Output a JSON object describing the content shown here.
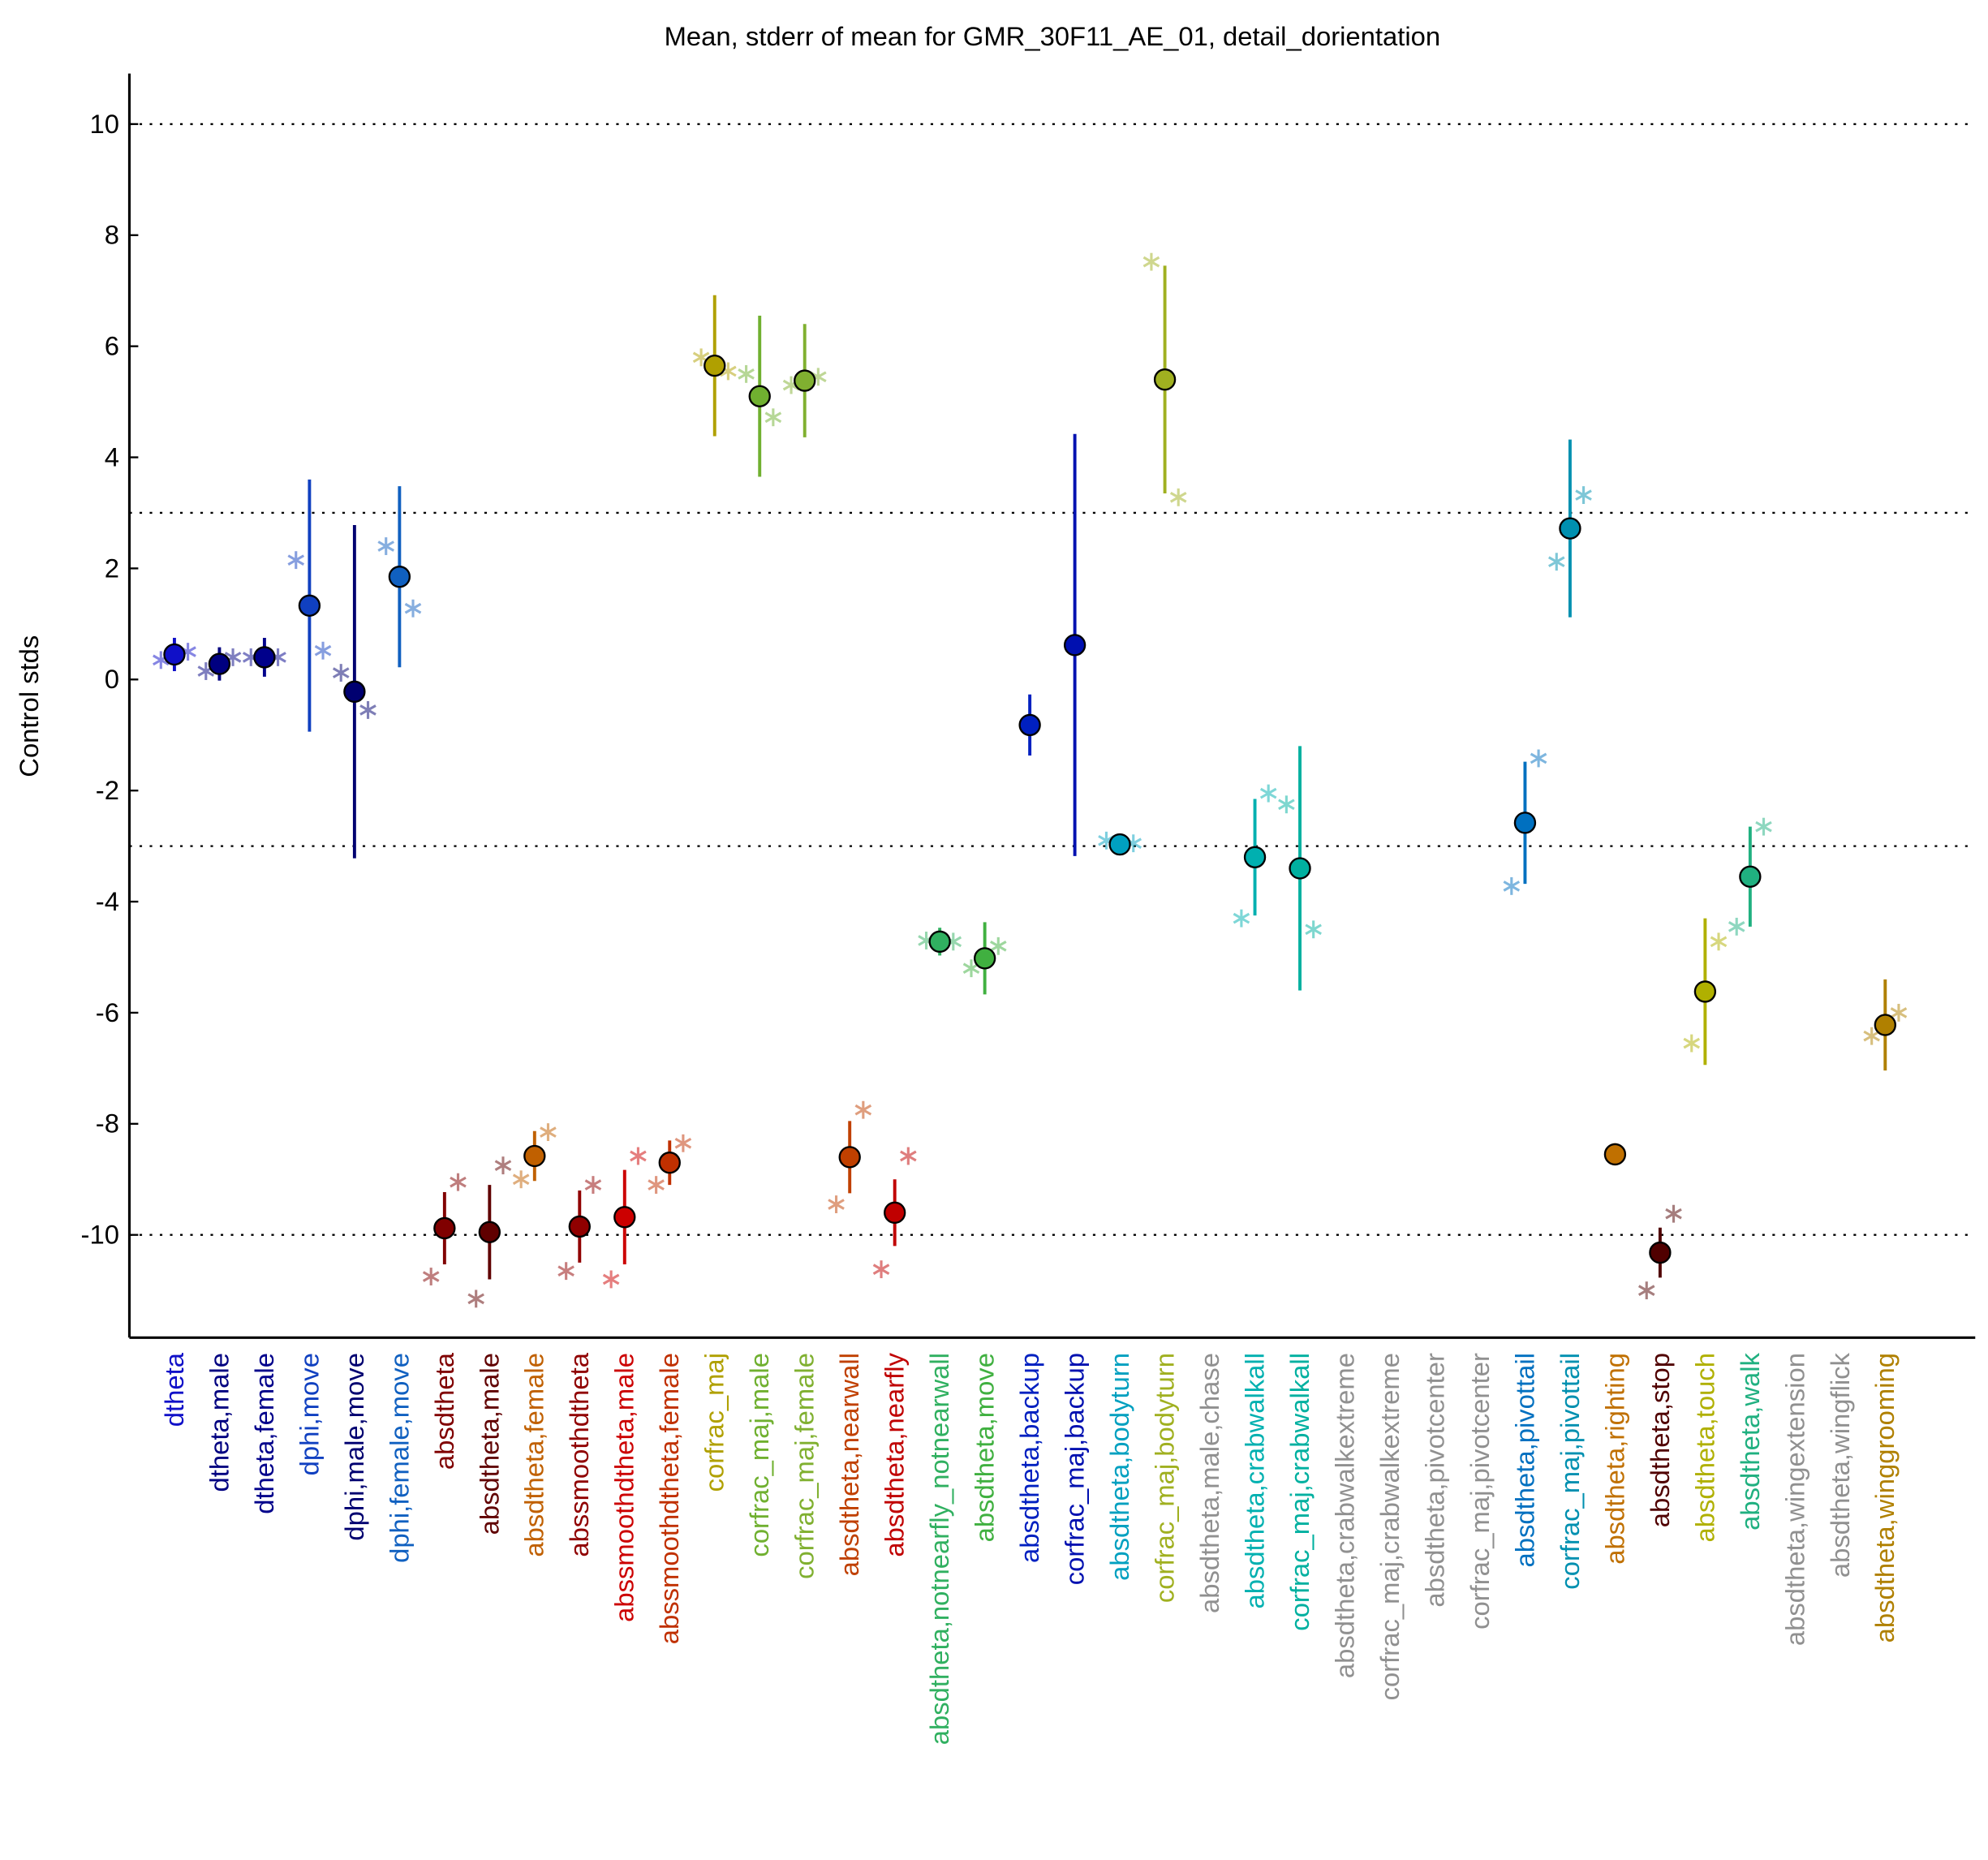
{
  "chart_data": {
    "type": "errorbar",
    "title": "Mean, stderr of mean for GMR_30F11_AE_01, detail_dorientation",
    "y_label": "Control stds",
    "categories": [
      "dtheta",
      "dtheta,male",
      "dtheta,female",
      "dphi,move",
      "dphi,male,move",
      "dphi,female,move",
      "absdtheta",
      "absdtheta,male",
      "absdtheta,female",
      "abssmoothdtheta",
      "abssmoothdtheta,male",
      "abssmoothdtheta,female",
      "corfrac_maj",
      "corfrac_maj,male",
      "corfrac_maj,female",
      "absdtheta,nearwall",
      "absdtheta,nearfly",
      "absdtheta,notnearfly_notnearwall",
      "absdtheta,move",
      "absdtheta,backup",
      "corfrac_maj,backup",
      "absdtheta,bodyturn",
      "corfrac_maj,bodyturn",
      "absdtheta,male,chase",
      "absdtheta,crabwalkall",
      "corfrac_maj,crabwalkall",
      "absdtheta,crabwalkextreme",
      "corfrac_maj,crabwalkextreme",
      "absdtheta,pivotcenter",
      "corfrac_maj,pivotcenter",
      "absdtheta,pivottail",
      "corfrac_maj,pivottail",
      "absdtheta,righting",
      "absdtheta,stop",
      "absdtheta,touch",
      "absdtheta,walk",
      "absdtheta,wingextension",
      "absdtheta,wingflick",
      "absdtheta,winggrooming"
    ],
    "colors": [
      "#1010c8",
      "#000080",
      "#00008b",
      "#1040c0",
      "#000070",
      "#1060c0",
      "#800000",
      "#600000",
      "#c06000",
      "#900000",
      "#cc0000",
      "#c03000",
      "#b0a000",
      "#70b030",
      "#80b030",
      "#c04000",
      "#c00000",
      "#30b060",
      "#40b040",
      "#0020c0",
      "#0010b0",
      "#00a0c0",
      "#a0b020",
      "#909090",
      "#00b0b0",
      "#00b0a0",
      "#909090",
      "#909090",
      "#909090",
      "#909090",
      "#0070c0",
      "#0090b0",
      "#c07000",
      "#500000",
      "#b0b000",
      "#20b080",
      "#909090",
      "#909090",
      "#b08000"
    ],
    "values": [
      0.45,
      0.28,
      0.4,
      1.33,
      -0.22,
      1.85,
      -9.88,
      -9.95,
      -8.58,
      -9.85,
      -9.68,
      -8.7,
      5.65,
      5.1,
      5.38,
      -8.6,
      -9.6,
      -4.72,
      -5.02,
      -0.82,
      0.62,
      -2.97,
      5.4,
      null,
      -3.2,
      -3.4,
      null,
      null,
      null,
      null,
      -2.58,
      2.72,
      -8.55,
      -10.32,
      -5.62,
      -3.55,
      null,
      null,
      -6.22
    ],
    "errors": [
      0.3,
      0.3,
      0.35,
      2.27,
      3.0,
      1.63,
      0.65,
      0.85,
      0.45,
      0.65,
      0.85,
      0.4,
      1.27,
      1.45,
      1.02,
      0.65,
      0.6,
      0.25,
      0.65,
      0.55,
      3.8,
      0.1,
      2.05,
      null,
      1.05,
      2.2,
      null,
      null,
      null,
      null,
      1.1,
      1.6,
      0.2,
      0.45,
      1.32,
      0.9,
      null,
      null,
      0.82
    ],
    "points_left": [
      0.35,
      0.15,
      0.4,
      2.15,
      0.12,
      2.4,
      -10.75,
      -11.15,
      -9.0,
      -10.65,
      -10.8,
      -9.1,
      5.8,
      5.5,
      5.3,
      -9.45,
      -10.62,
      -4.7,
      -5.2,
      null,
      null,
      -2.9,
      7.52,
      null,
      -4.3,
      -2.25,
      null,
      null,
      null,
      null,
      -3.72,
      2.12,
      null,
      -11.0,
      -6.55,
      -4.45,
      null,
      null,
      -6.42
    ],
    "points_right": [
      0.5,
      0.4,
      0.4,
      0.52,
      -0.55,
      1.28,
      -9.05,
      -8.75,
      -8.15,
      -9.1,
      -8.58,
      -8.35,
      5.55,
      4.72,
      5.45,
      -7.75,
      -8.58,
      -4.72,
      -4.8,
      null,
      null,
      -2.95,
      3.28,
      null,
      -2.05,
      -4.5,
      null,
      null,
      null,
      null,
      -1.42,
      3.32,
      null,
      -9.62,
      -4.72,
      -2.65,
      null,
      null,
      -6.0
    ],
    "ylim": [
      -11.85,
      10.91
    ],
    "yticks": [
      -10,
      -8,
      -6,
      -4,
      -2,
      0,
      2,
      4,
      6,
      8,
      10
    ],
    "reference_lines": [
      -10,
      -3,
      3,
      10
    ]
  }
}
